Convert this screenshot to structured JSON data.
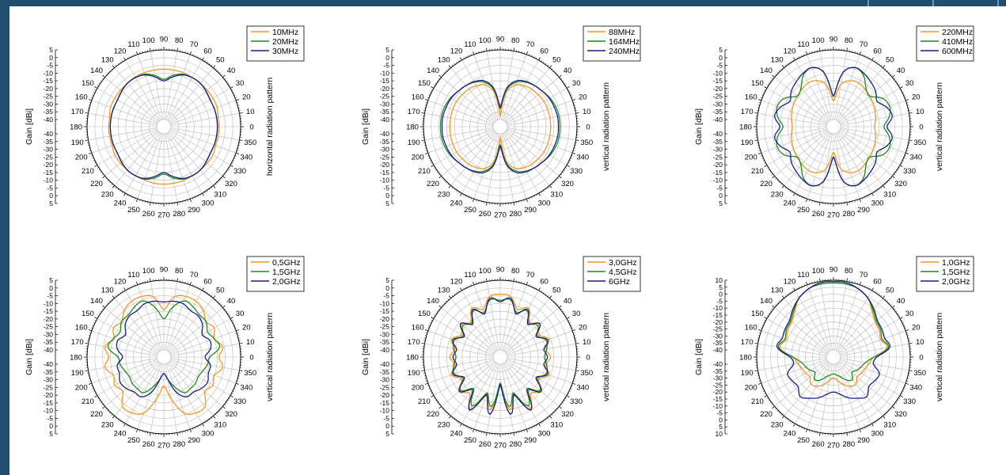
{
  "colors": {
    "orange": "#f7941d",
    "green": "#1a8c1a",
    "navy": "#1b1b8f",
    "frame": "#1f4e6e"
  },
  "chart_data": [
    {
      "type": "polar",
      "ylabel": "Gain [dBi]",
      "side_label": "horizontal radiation pattern",
      "radial_ticks": [
        "5",
        "0",
        "-5",
        "-10",
        "-15",
        "-20",
        "-25",
        "-30",
        "-35",
        "-40"
      ],
      "angle_ticks": [
        "0",
        "10",
        "20",
        "30",
        "40",
        "50",
        "60",
        "70",
        "80",
        "90",
        "100",
        "110",
        "120",
        "130",
        "140",
        "150",
        "160",
        "170",
        "180",
        "190",
        "200",
        "210",
        "220",
        "230",
        "240",
        "250",
        "260",
        "270",
        "280",
        "290",
        "300",
        "310",
        "320",
        "330",
        "340",
        "350"
      ],
      "rlim": [
        -40,
        5
      ],
      "legend_position": "top-right",
      "series": [
        {
          "name": "10MHz",
          "color": "orange",
          "gain": [
            -9,
            -9,
            -8,
            -8,
            -8,
            -8,
            -8,
            -7.5,
            -7.5,
            -7.5,
            -7.5,
            -7.5,
            -7.5,
            -8,
            -8,
            -8,
            -8,
            -9,
            -9,
            -9,
            -9,
            -8,
            -8,
            -8,
            -8,
            -8,
            -7.5,
            -7.5,
            -7.5,
            -7.5,
            -8,
            -8,
            -8,
            -8,
            -9,
            -9
          ]
        },
        {
          "name": "20MHz",
          "color": "green",
          "gain": [
            -10,
            -10,
            -10,
            -10,
            -9,
            -8,
            -8,
            -8.5,
            -11,
            -14,
            -11,
            -8.5,
            -8,
            -8,
            -9,
            -10,
            -10,
            -10,
            -10,
            -10,
            -10,
            -10,
            -9,
            -8,
            -8,
            -8.5,
            -11,
            -14,
            -11,
            -8.5,
            -8,
            -8,
            -9,
            -10,
            -10,
            -10
          ]
        },
        {
          "name": "30MHz",
          "color": "navy",
          "gain": [
            -10,
            -10,
            -10,
            -10,
            -9,
            -8,
            -8,
            -9,
            -12,
            -15,
            -12,
            -9,
            -8,
            -8,
            -9,
            -10,
            -10,
            -10,
            -10,
            -10,
            -10,
            -10,
            -9,
            -8,
            -8,
            -9,
            -12,
            -15,
            -12,
            -9,
            -8,
            -8,
            -9,
            -10,
            -10,
            -10
          ]
        }
      ]
    },
    {
      "type": "polar",
      "ylabel": "Gain [dBi]",
      "side_label": "vertical radiation pattern",
      "radial_ticks": [
        "5",
        "0",
        "-5",
        "-10",
        "-15",
        "-20",
        "-25",
        "-30",
        "-35",
        "-40"
      ],
      "angle_ticks": [
        "0",
        "10",
        "20",
        "30",
        "40",
        "50",
        "60",
        "70",
        "80",
        "90",
        "100",
        "110",
        "120",
        "130",
        "140",
        "150",
        "160",
        "170",
        "180",
        "190",
        "200",
        "210",
        "220",
        "230",
        "240",
        "250",
        "260",
        "270",
        "280",
        "290",
        "300",
        "310",
        "320",
        "330",
        "340",
        "350"
      ],
      "rlim": [
        -40,
        5
      ],
      "legend_position": "top-right",
      "series": [
        {
          "name": "88MHz",
          "color": "orange",
          "gain": [
            -12,
            -12,
            -12,
            -12,
            -12.5,
            -13,
            -14,
            -16,
            -22,
            -38,
            -22,
            -16,
            -14,
            -13,
            -12.5,
            -12,
            -12,
            -12,
            -12,
            -12,
            -12,
            -12,
            -12.5,
            -13,
            -14,
            -16,
            -22,
            -38,
            -22,
            -16,
            -14,
            -13,
            -12.5,
            -12,
            -12,
            -12
          ]
        },
        {
          "name": "164MHz",
          "color": "green",
          "gain": [
            -6,
            -6,
            -6.5,
            -7.5,
            -9,
            -10,
            -11.5,
            -14,
            -20,
            -33,
            -20,
            -14,
            -11.5,
            -10,
            -9,
            -7.5,
            -6.5,
            -6,
            -6,
            -6,
            -6.5,
            -7.5,
            -9,
            -10,
            -11.5,
            -14,
            -20,
            -33,
            -20,
            -14,
            -11.5,
            -10,
            -9,
            -7.5,
            -6.5,
            -6
          ]
        },
        {
          "name": "240MHz",
          "color": "navy",
          "gain": [
            -7,
            -7,
            -7.5,
            -8,
            -9,
            -10,
            -11,
            -13,
            -19,
            -32,
            -19,
            -13,
            -11,
            -10,
            -9,
            -8,
            -7.5,
            -7,
            -7,
            -7,
            -7.5,
            -8,
            -9,
            -10,
            -11,
            -13,
            -19,
            -32,
            -19,
            -13,
            -11,
            -10,
            -9,
            -8,
            -7.5,
            -7
          ]
        }
      ]
    },
    {
      "type": "polar",
      "ylabel": "Gain [dBi]",
      "side_label": "vertical radiation pattern",
      "radial_ticks": [
        "5",
        "0",
        "-5",
        "-10",
        "-15",
        "-20",
        "-25",
        "-30",
        "-35",
        "-40"
      ],
      "angle_ticks": [
        "0",
        "10",
        "20",
        "30",
        "40",
        "50",
        "60",
        "70",
        "80",
        "90",
        "100",
        "110",
        "120",
        "130",
        "140",
        "150",
        "160",
        "170",
        "180",
        "190",
        "200",
        "210",
        "220",
        "230",
        "240",
        "250",
        "260",
        "270",
        "280",
        "290",
        "300",
        "310",
        "320",
        "330",
        "340",
        "350"
      ],
      "rlim": [
        -40,
        5
      ],
      "legend_position": "top-right",
      "series": [
        {
          "name": "220MHz",
          "color": "orange",
          "gain": [
            -18,
            -17,
            -16,
            -15,
            -14,
            -13,
            -12,
            -13,
            -17,
            -28,
            -17,
            -13,
            -12,
            -13,
            -14,
            -15,
            -16,
            -17,
            -18,
            -17,
            -16,
            -15,
            -14,
            -13,
            -12,
            -13,
            -17,
            -28,
            -17,
            -13,
            -12,
            -13,
            -14,
            -15,
            -16,
            -17
          ]
        },
        {
          "name": "410MHz",
          "color": "green",
          "gain": [
            -12,
            -8,
            -6,
            -8,
            -14,
            -12,
            -6,
            -4,
            -9,
            -25,
            -9,
            -4,
            -6,
            -12,
            -14,
            -8,
            -6,
            -8,
            -12,
            -8,
            -6,
            -8,
            -14,
            -12,
            -6,
            -4,
            -9,
            -25,
            -9,
            -4,
            -6,
            -12,
            -14,
            -8,
            -6,
            -8
          ]
        },
        {
          "name": "600MHz",
          "color": "navy",
          "gain": [
            -10,
            -6,
            -8,
            -12,
            -9,
            -7,
            -5,
            -4,
            -9,
            -25,
            -9,
            -4,
            -5,
            -7,
            -9,
            -12,
            -8,
            -6,
            -10,
            -6,
            -8,
            -12,
            -9,
            -7,
            -5,
            -4,
            -9,
            -25,
            -9,
            -4,
            -5,
            -7,
            -9,
            -12,
            -8,
            -6
          ]
        }
      ]
    },
    {
      "type": "polar",
      "ylabel": "Gain [dBi]",
      "side_label": "vertical radiation pattern",
      "radial_ticks": [
        "5",
        "0",
        "-5",
        "-10",
        "-15",
        "-20",
        "-25",
        "-30",
        "-35",
        "-40"
      ],
      "angle_ticks": [
        "0",
        "10",
        "20",
        "30",
        "40",
        "50",
        "60",
        "70",
        "80",
        "90",
        "100",
        "110",
        "120",
        "130",
        "140",
        "150",
        "160",
        "170",
        "180",
        "190",
        "200",
        "210",
        "220",
        "230",
        "240",
        "250",
        "260",
        "270",
        "280",
        "290",
        "300",
        "310",
        "320",
        "330",
        "340",
        "350"
      ],
      "rlim": [
        -40,
        5
      ],
      "legend_position": "top-right",
      "series": [
        {
          "name": "0,5GHz",
          "color": "orange",
          "gain": [
            -9,
            -6,
            -10,
            -7,
            -9,
            -5,
            -3,
            -3,
            -5,
            -14,
            -5,
            -3,
            -3,
            -5,
            -9,
            -7,
            -10,
            -6,
            -9,
            -6,
            -10,
            -8,
            -10,
            -3,
            -3,
            -6,
            -17,
            -26,
            -17,
            -6,
            -3,
            -3,
            -10,
            -8,
            -10,
            -6
          ]
        },
        {
          "name": "1,5GHz",
          "color": "green",
          "gain": [
            -15,
            -8,
            -10,
            -12,
            -9,
            -9,
            -7,
            -6,
            -12,
            -20,
            -12,
            -6,
            -7,
            -9,
            -9,
            -12,
            -10,
            -8,
            -15,
            -16,
            -18,
            -19,
            -18,
            -18,
            -18,
            -24,
            -30,
            -34,
            -30,
            -24,
            -18,
            -18,
            -18,
            -19,
            -18,
            -16
          ]
        },
        {
          "name": "2,0GHz",
          "color": "navy",
          "gain": [
            -18,
            -14,
            -13,
            -16,
            -12,
            -10,
            -10,
            -8,
            -8,
            -9,
            -8,
            -8,
            -10,
            -10,
            -12,
            -16,
            -13,
            -14,
            -18,
            -14,
            -14,
            -12,
            -13,
            -15,
            -15,
            -20,
            -30,
            -34,
            -30,
            -20,
            -15,
            -15,
            -13,
            -12,
            -14,
            -14
          ]
        }
      ]
    },
    {
      "type": "polar",
      "ylabel": "Gain [dBi]",
      "side_label": "vertical radiation pattern",
      "radial_ticks": [
        "5",
        "0",
        "-5",
        "-10",
        "-15",
        "-20",
        "-25",
        "-30",
        "-35",
        "-40"
      ],
      "angle_ticks": [
        "0",
        "10",
        "20",
        "30",
        "40",
        "50",
        "60",
        "70",
        "80",
        "90",
        "100",
        "110",
        "120",
        "130",
        "140",
        "150",
        "160",
        "170",
        "180",
        "190",
        "200",
        "210",
        "220",
        "230",
        "240",
        "250",
        "260",
        "270",
        "280",
        "290",
        "300",
        "310",
        "320",
        "330",
        "340",
        "350"
      ],
      "rlim": [
        -40,
        5
      ],
      "legend_position": "top-right",
      "series": [
        {
          "name": "3,0GHz",
          "color": "orange",
          "gain": [
            -12,
            -15,
            -11,
            -16,
            -12,
            -15,
            -8,
            -12,
            -5,
            -4,
            -5,
            -12,
            -8,
            -15,
            -12,
            -16,
            -11,
            -15,
            -12,
            -15,
            -11,
            -16,
            -10,
            -14,
            -6,
            -18,
            -10,
            -26,
            -10,
            -18,
            -6,
            -14,
            -10,
            -16,
            -11,
            -15
          ]
        },
        {
          "name": "4,5GHz",
          "color": "green",
          "gain": [
            -16,
            -14,
            -13,
            -17,
            -13,
            -16,
            -10,
            -14,
            -7,
            -8,
            -7,
            -14,
            -10,
            -16,
            -13,
            -17,
            -13,
            -14,
            -16,
            -14,
            -13,
            -17,
            -11,
            -18,
            -8,
            -20,
            -12,
            -28,
            -12,
            -20,
            -8,
            -18,
            -11,
            -17,
            -13,
            -14
          ]
        },
        {
          "name": "6GHz",
          "color": "navy",
          "gain": [
            -14,
            -16,
            -12,
            -18,
            -11,
            -17,
            -9,
            -15,
            -6,
            -9,
            -6,
            -15,
            -9,
            -17,
            -11,
            -18,
            -12,
            -16,
            -14,
            -16,
            -12,
            -18,
            -10,
            -17,
            -5,
            -19,
            -7,
            -27,
            -7,
            -19,
            -5,
            -17,
            -10,
            -18,
            -12,
            -16
          ]
        }
      ]
    },
    {
      "type": "polar",
      "ylabel": "Gain [dBi]",
      "side_label": "vertical radiation pattern",
      "radial_ticks": [
        "10",
        "5",
        "0",
        "-5",
        "-10",
        "-15",
        "-20",
        "-25",
        "-30",
        "-35",
        "-40"
      ],
      "angle_ticks": [
        "0",
        "10",
        "20",
        "30",
        "40",
        "50",
        "60",
        "70",
        "80",
        "90",
        "100",
        "110",
        "120",
        "130",
        "140",
        "150",
        "160",
        "170",
        "180",
        "190",
        "200",
        "210",
        "220",
        "230",
        "240",
        "250",
        "260",
        "270",
        "280",
        "290",
        "300",
        "310",
        "320",
        "330",
        "340",
        "350"
      ],
      "rlim": [
        -40,
        10
      ],
      "legend_position": "top-right",
      "series": [
        {
          "name": "1,0GHz",
          "color": "orange",
          "gain": [
            -16,
            -6,
            -9,
            -7,
            -6,
            -2,
            4,
            7,
            9,
            9,
            9,
            7,
            4,
            -2,
            -6,
            -7,
            -9,
            -6,
            -16,
            -19,
            -21,
            -22,
            -23,
            -20,
            -21,
            -24,
            -28,
            -30,
            -28,
            -24,
            -21,
            -20,
            -23,
            -22,
            -21,
            -19
          ]
        },
        {
          "name": "1,5GHz",
          "color": "green",
          "gain": [
            -16,
            -5,
            -8,
            -6,
            -5,
            -1,
            4,
            7,
            8,
            8,
            8,
            7,
            4,
            -1,
            -5,
            -6,
            -8,
            -5,
            -16,
            -22,
            -24,
            -26,
            -28,
            -24,
            -26,
            -30,
            -32,
            -33,
            -32,
            -30,
            -26,
            -24,
            -28,
            -26,
            -24,
            -22
          ]
        },
        {
          "name": "2,0GHz",
          "color": "navy",
          "gain": [
            -14,
            -4,
            -6,
            -5,
            -4,
            0,
            4,
            7,
            9,
            9,
            9,
            7,
            4,
            0,
            -4,
            -5,
            -6,
            -4,
            -14,
            -16,
            -10,
            -11,
            -12,
            -8,
            -11,
            -14,
            -18,
            -20,
            -18,
            -14,
            -11,
            -8,
            -12,
            -11,
            -10,
            -16
          ]
        }
      ]
    }
  ]
}
